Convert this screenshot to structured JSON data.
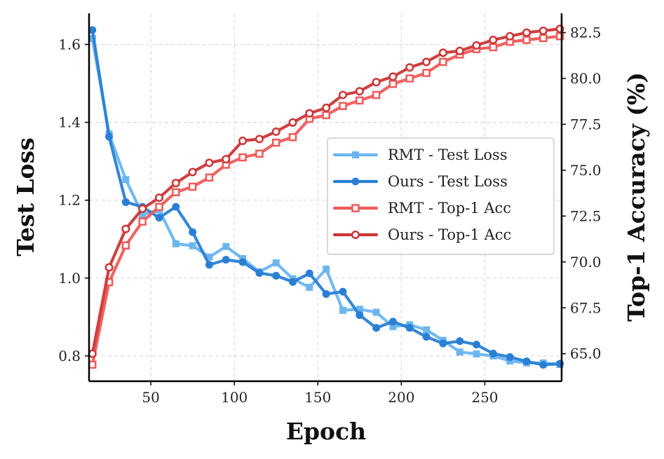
{
  "chart_data": {
    "type": "line",
    "title": "",
    "xlabel": "Epoch",
    "ylabel": "Test Loss",
    "y2label": "Top-1 Accuracy (%)",
    "xlim": [
      13,
      296
    ],
    "ylim": [
      0.735,
      1.68
    ],
    "y2lim": [
      63.5,
      83.55
    ],
    "xticks": [
      50,
      100,
      150,
      200,
      250
    ],
    "yticks": [
      0.8,
      1.0,
      1.2,
      1.4,
      1.6
    ],
    "y2ticks": [
      65.0,
      67.5,
      70.0,
      72.5,
      75.0,
      77.5,
      80.0,
      82.5
    ],
    "xtick_labels": [
      "50",
      "100",
      "150",
      "200",
      "250"
    ],
    "ytick_labels": [
      "0.8",
      "1.0",
      "1.2",
      "1.4",
      "1.6"
    ],
    "y2tick_labels": [
      "65.0",
      "67.5",
      "70.0",
      "72.5",
      "75.0",
      "77.5",
      "80.0",
      "82.5"
    ],
    "grid": true,
    "legend_position": "center-right",
    "x": [
      15,
      25,
      35,
      45,
      55,
      65,
      75,
      85,
      95,
      105,
      115,
      125,
      135,
      145,
      155,
      165,
      175,
      185,
      195,
      205,
      215,
      225,
      235,
      245,
      255,
      265,
      275,
      285,
      295
    ],
    "series": [
      {
        "name": "RMT - Test Loss",
        "axis": "left",
        "color": "#6cb6f0",
        "marker": "square-filled",
        "values": [
          1.615,
          1.37,
          1.253,
          1.163,
          1.175,
          1.088,
          1.083,
          1.054,
          1.081,
          1.05,
          1.016,
          1.039,
          0.998,
          0.976,
          1.023,
          0.917,
          0.92,
          0.912,
          0.875,
          0.88,
          0.867,
          0.84,
          0.81,
          0.805,
          0.8,
          0.787,
          0.782,
          0.782,
          0.778
        ]
      },
      {
        "name": "Ours - Test Loss",
        "axis": "left",
        "color": "#2a7fd4",
        "marker": "circle-filled",
        "values": [
          1.637,
          1.363,
          1.195,
          1.183,
          1.155,
          1.183,
          1.118,
          1.034,
          1.047,
          1.041,
          1.013,
          1.006,
          0.99,
          1.012,
          0.959,
          0.965,
          0.905,
          0.872,
          0.888,
          0.872,
          0.849,
          0.832,
          0.838,
          0.829,
          0.806,
          0.797,
          0.786,
          0.777,
          0.78
        ]
      },
      {
        "name": "RMT - Top-1 Acc",
        "axis": "right",
        "color": "#ef5a5a",
        "marker": "square-open",
        "values": [
          64.4,
          68.9,
          70.9,
          72.2,
          73.0,
          73.8,
          74.1,
          74.6,
          75.3,
          75.7,
          75.9,
          76.5,
          76.8,
          77.8,
          78.0,
          78.5,
          78.8,
          79.1,
          79.7,
          80.0,
          80.3,
          80.9,
          81.3,
          81.6,
          81.7,
          82.0,
          82.1,
          82.2,
          82.3
        ]
      },
      {
        "name": "Ours - Top-1 Acc",
        "axis": "right",
        "color": "#cc3636",
        "marker": "circle-open",
        "values": [
          65.0,
          69.7,
          71.8,
          72.9,
          73.5,
          74.3,
          74.9,
          75.4,
          75.6,
          76.6,
          76.7,
          77.1,
          77.6,
          78.1,
          78.4,
          79.1,
          79.3,
          79.8,
          80.1,
          80.6,
          80.9,
          81.4,
          81.5,
          81.8,
          82.1,
          82.3,
          82.5,
          82.6,
          82.7
        ]
      }
    ]
  }
}
